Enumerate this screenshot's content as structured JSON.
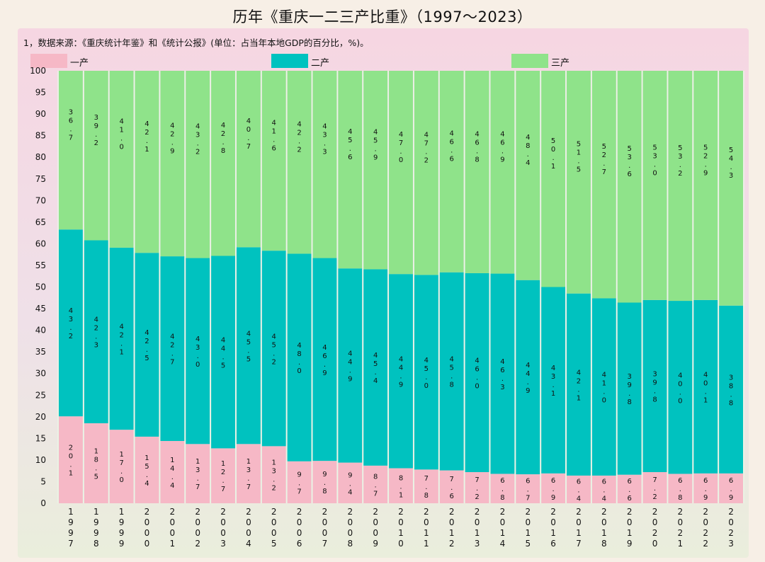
{
  "title": "历年《重庆一二三产比重》（1997～2023）",
  "subtitle": "1，数据来源：《重庆统计年鉴》和《统计公报》(单位：占当年本地GDP的百分比，%)。",
  "colors": {
    "primary": "#f6b8c6",
    "secondary": "#00c2bf",
    "tertiary": "#8fe38a"
  },
  "chart_data": {
    "type": "bar",
    "stacked": true,
    "title": "历年《重庆一二三产比重》（1997～2023）",
    "categories": [
      "1997",
      "1998",
      "1999",
      "2000",
      "2001",
      "2002",
      "2003",
      "2004",
      "2005",
      "2006",
      "2007",
      "2008",
      "2009",
      "2010",
      "2011",
      "2012",
      "2013",
      "2014",
      "2015",
      "2016",
      "2017",
      "2018",
      "2019",
      "2020",
      "2021",
      "2022",
      "2023"
    ],
    "category_labels": [
      "1997",
      "1998",
      "1999",
      "2000",
      "2001",
      "2002",
      "2003",
      "2004",
      "2005",
      "2006",
      "2007",
      "2008",
      "2009",
      "2010",
      "2011",
      "2012",
      "2013",
      "2014",
      "2015",
      "2016",
      "2017",
      "2018",
      "2019",
      "2020",
      "2021",
      "2022",
      "2023"
    ],
    "ylim": [
      0,
      100
    ],
    "yticks": [
      0,
      5,
      10,
      15,
      20,
      25,
      30,
      35,
      40,
      45,
      50,
      55,
      60,
      65,
      70,
      75,
      80,
      85,
      90,
      95,
      100
    ],
    "legend_position": "top",
    "series": [
      {
        "name": "一产",
        "color": "#f6b8c6",
        "values": [
          20.1,
          18.5,
          17.0,
          15.4,
          14.4,
          13.7,
          12.7,
          13.7,
          13.2,
          9.7,
          9.8,
          9.4,
          8.7,
          8.1,
          7.8,
          7.6,
          7.2,
          6.8,
          6.7,
          6.9,
          6.4,
          6.4,
          6.6,
          7.2,
          6.8,
          6.9,
          6.9
        ],
        "labels": [
          "20.1",
          "18.5",
          "17.0",
          "15.4",
          "14.4",
          "13.7",
          "12.7",
          "13.7",
          "13.2",
          "9.7",
          "9.8",
          "9.4",
          "8.7",
          "8.1",
          "7.8",
          "7.6",
          "7.2",
          "6.8",
          "6.7",
          "6.9",
          "6.4",
          "6.4",
          "6.6",
          "7.2",
          "6.8",
          "6.9",
          "6.9"
        ]
      },
      {
        "name": "二产",
        "color": "#00c2bf",
        "values": [
          43.2,
          42.3,
          42.1,
          42.5,
          42.7,
          43.0,
          44.5,
          45.5,
          45.2,
          48.0,
          46.9,
          44.9,
          45.4,
          44.9,
          45.0,
          45.8,
          46.0,
          46.3,
          44.9,
          43.1,
          42.1,
          41.0,
          39.8,
          39.8,
          40.0,
          40.1,
          38.8
        ],
        "labels": [
          "43.2",
          "42.3",
          "42.1",
          "42.5",
          "42.7",
          "43.0",
          "44.5",
          "45.5",
          "45.2",
          "48.0",
          "46.9",
          "44.9",
          "45.4",
          "44.9",
          "45.0",
          "45.8",
          "46.0",
          "46.3",
          "44.9",
          "43.1",
          "42.1",
          "41.0",
          "39.8",
          "39.8",
          "40.0",
          "40.1",
          "38.8"
        ]
      },
      {
        "name": "三产",
        "color": "#8fe38a",
        "values": [
          36.7,
          39.2,
          41.0,
          42.1,
          42.9,
          43.2,
          42.8,
          40.7,
          41.6,
          42.2,
          43.3,
          45.6,
          45.9,
          47.0,
          47.2,
          46.6,
          46.8,
          46.9,
          48.4,
          50.1,
          51.5,
          52.7,
          53.6,
          53.0,
          53.2,
          52.9,
          54.3
        ],
        "labels": [
          "36.7",
          "39.2",
          "41.0",
          "42.1",
          "42.9",
          "43.2",
          "42.8",
          "40.7",
          "41.6",
          "42.2",
          "43.3",
          "45.6",
          "45.9",
          "47.0",
          "47.2",
          "46.6",
          "46.8",
          "46.9",
          "48.4",
          "50.1",
          "51.5",
          "52.7",
          "53.6",
          "53.0",
          "53.2",
          "52.9",
          "54.3"
        ]
      }
    ]
  }
}
